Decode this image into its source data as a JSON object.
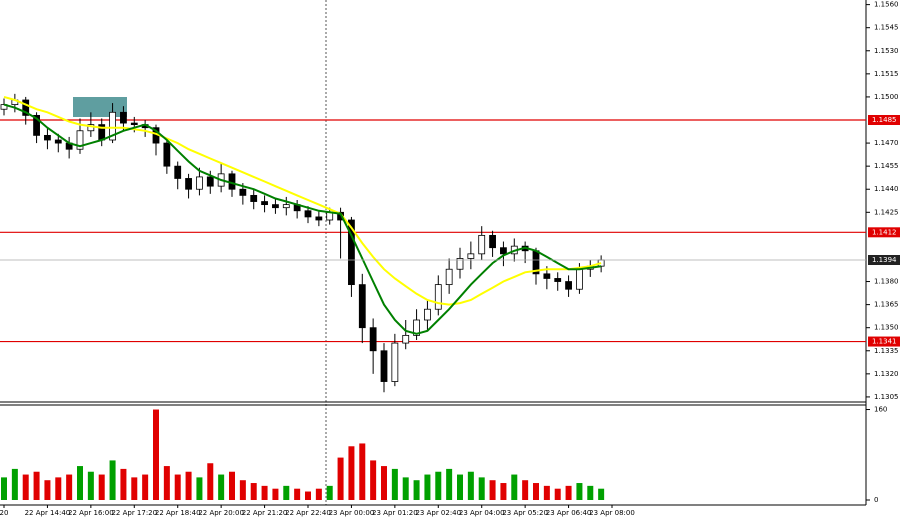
{
  "chart_data": {
    "type": "candlestick",
    "categories": [
      "20",
      null,
      null,
      null,
      "22 Apr 14:40",
      null,
      null,
      null,
      "22 Apr 16:00",
      null,
      null,
      null,
      "22 Apr 17:20",
      null,
      null,
      null,
      "22 Apr 18:40",
      null,
      null,
      null,
      "22 Apr 20:00",
      null,
      null,
      null,
      "22 Apr 21:20",
      null,
      null,
      null,
      "22 Apr 22:40",
      null,
      null,
      null,
      "23 Apr 00:00",
      null,
      null,
      null,
      "23 Apr 01:20",
      null,
      null,
      null,
      "23 Apr 02:40",
      null,
      null,
      null,
      "23 Apr 04:00",
      null,
      null,
      null,
      "23 Apr 05:20",
      null,
      null,
      null,
      "23 Apr 06:40",
      null,
      null,
      null,
      "23 Apr 08:00"
    ],
    "open": [
      1.1492,
      1.1495,
      1.1498,
      1.1488,
      1.1475,
      1.1472,
      1.147,
      1.1466,
      1.1478,
      1.1482,
      1.1472,
      1.149,
      1.1483,
      1.1482,
      1.148,
      1.147,
      1.1455,
      1.1447,
      1.144,
      1.1448,
      1.1442,
      1.145,
      1.144,
      1.1436,
      1.1432,
      1.143,
      1.1428,
      1.143,
      1.1426,
      1.1422,
      1.142,
      1.1425,
      1.142,
      1.1378,
      1.135,
      1.1335,
      1.1315,
      1.134,
      1.1345,
      1.1355,
      1.1362,
      1.1378,
      1.1388,
      1.1395,
      1.1398,
      1.141,
      1.1402,
      1.1398,
      1.1403,
      1.14,
      1.1385,
      1.1382,
      1.138,
      1.1375,
      1.1388,
      1.139,
      null
    ],
    "high": [
      1.1499,
      1.1502,
      1.15,
      1.149,
      1.148,
      1.1476,
      1.1474,
      1.1486,
      1.149,
      1.1486,
      1.1496,
      1.1494,
      1.1487,
      1.1485,
      1.1482,
      1.1472,
      1.1458,
      1.145,
      1.1454,
      1.1452,
      1.1457,
      1.1452,
      1.1444,
      1.144,
      1.1436,
      1.1434,
      1.1435,
      1.1433,
      1.1429,
      1.1426,
      1.1428,
      1.1428,
      1.1422,
      1.1385,
      1.1356,
      1.134,
      1.1346,
      1.1355,
      1.1362,
      1.1368,
      1.1384,
      1.1395,
      1.1402,
      1.1406,
      1.1416,
      1.1413,
      1.1406,
      1.1408,
      1.1406,
      1.1402,
      1.139,
      1.1386,
      1.1384,
      1.1392,
      1.1394,
      1.1397,
      null
    ],
    "low": [
      1.1488,
      1.149,
      1.1482,
      1.147,
      1.1466,
      1.1464,
      1.146,
      1.1463,
      1.1474,
      1.1468,
      1.147,
      1.1478,
      1.1477,
      1.1474,
      1.1462,
      1.145,
      1.144,
      1.1434,
      1.1436,
      1.1437,
      1.1438,
      1.1435,
      1.143,
      1.1427,
      1.1425,
      1.1424,
      1.1423,
      1.1421,
      1.1418,
      1.1416,
      1.1417,
      1.1395,
      1.137,
      1.134,
      1.132,
      1.1308,
      1.1312,
      1.1336,
      1.1342,
      1.1348,
      1.1358,
      1.1372,
      1.1382,
      1.1388,
      1.1394,
      1.1396,
      1.139,
      1.1393,
      1.1392,
      1.1378,
      1.1375,
      1.1374,
      1.137,
      1.1372,
      1.1383,
      1.1386,
      null
    ],
    "close": [
      1.1495,
      1.1498,
      1.1488,
      1.1475,
      1.1472,
      1.147,
      1.1466,
      1.1478,
      1.1482,
      1.1472,
      1.149,
      1.1483,
      1.1482,
      1.148,
      1.147,
      1.1455,
      1.1447,
      1.144,
      1.1448,
      1.1442,
      1.145,
      1.144,
      1.1436,
      1.1432,
      1.143,
      1.1428,
      1.143,
      1.1426,
      1.1422,
      1.142,
      1.1425,
      1.142,
      1.1378,
      1.135,
      1.1335,
      1.1315,
      1.134,
      1.1345,
      1.1355,
      1.1362,
      1.1378,
      1.1388,
      1.1395,
      1.1398,
      1.141,
      1.1402,
      1.1398,
      1.1403,
      1.14,
      1.1385,
      1.1382,
      1.138,
      1.1375,
      1.1388,
      1.139,
      1.1394,
      null
    ],
    "candle_color": "#000000",
    "moving_averages": [
      {
        "color": "#ffff00",
        "values": [
          1.15,
          1.1498,
          1.1495,
          1.1492,
          1.149,
          1.1487,
          1.1484,
          1.1482,
          1.1481,
          1.148,
          1.148,
          1.148,
          1.1479,
          1.1478,
          1.1476,
          1.1473,
          1.147,
          1.1466,
          1.1463,
          1.146,
          1.1457,
          1.1454,
          1.1451,
          1.1448,
          1.1445,
          1.1442,
          1.1439,
          1.1436,
          1.1433,
          1.143,
          1.1427,
          1.1424,
          1.1415,
          1.1405,
          1.1396,
          1.1388,
          1.1382,
          1.1377,
          1.1372,
          1.1368,
          1.1366,
          1.1365,
          1.1366,
          1.1368,
          1.1372,
          1.1376,
          1.138,
          1.1383,
          1.1386,
          1.1387,
          1.1388,
          1.1388,
          1.1388,
          1.1389,
          1.139,
          1.1392,
          null
        ]
      },
      {
        "color": "#008000",
        "values": [
          1.1495,
          1.1493,
          1.149,
          1.1486,
          1.148,
          1.1475,
          1.147,
          1.1468,
          1.147,
          1.1472,
          1.1475,
          1.1478,
          1.148,
          1.1482,
          1.1478,
          1.1472,
          1.1465,
          1.1458,
          1.1452,
          1.1449,
          1.1446,
          1.1444,
          1.1442,
          1.144,
          1.1437,
          1.1434,
          1.1432,
          1.143,
          1.1428,
          1.1426,
          1.1425,
          1.1424,
          1.141,
          1.1395,
          1.138,
          1.1365,
          1.1355,
          1.1348,
          1.1346,
          1.1348,
          1.1355,
          1.1362,
          1.137,
          1.1378,
          1.1385,
          1.1392,
          1.1397,
          1.14,
          1.1402,
          1.14,
          1.1396,
          1.1392,
          1.1388,
          1.1388,
          1.1389,
          1.139,
          null
        ]
      }
    ],
    "ylim": [
      1.1303,
      1.1563
    ],
    "yticks": [
      {
        "value": 1.156,
        "label": "1.1560"
      },
      1.1545,
      {
        "value": 1.153,
        "label": "1.1530"
      },
      1.1515,
      {
        "value": 1.15,
        "label": "1.1500"
      },
      {
        "value": 1.147,
        "label": "1.1470"
      },
      1.1455,
      {
        "value": 1.144,
        "label": "1.1440"
      },
      1.1425,
      {
        "value": 1.138,
        "label": "1.1380"
      },
      1.1365,
      {
        "value": 1.135,
        "label": "1.1350"
      },
      1.1335,
      {
        "value": 1.132,
        "label": "1.1320"
      },
      1.1305
    ],
    "levels": [
      1.1485,
      1.1412,
      1.1341
    ],
    "level_color": "#e00000",
    "price_line": 1.1394,
    "volume": {
      "values": [
        40,
        55,
        45,
        50,
        35,
        40,
        45,
        60,
        50,
        45,
        70,
        55,
        40,
        45,
        160,
        60,
        45,
        50,
        40,
        65,
        45,
        50,
        35,
        30,
        25,
        20,
        25,
        20,
        15,
        20,
        25,
        75,
        95,
        100,
        70,
        60,
        55,
        40,
        35,
        45,
        50,
        55,
        45,
        50,
        40,
        35,
        30,
        45,
        35,
        30,
        25,
        20,
        25,
        30,
        25,
        20,
        null
      ],
      "ylim": [
        0,
        168
      ],
      "yticks": [
        0,
        160
      ],
      "up_color": "#00a000",
      "down_color": "#e00000"
    }
  }
}
